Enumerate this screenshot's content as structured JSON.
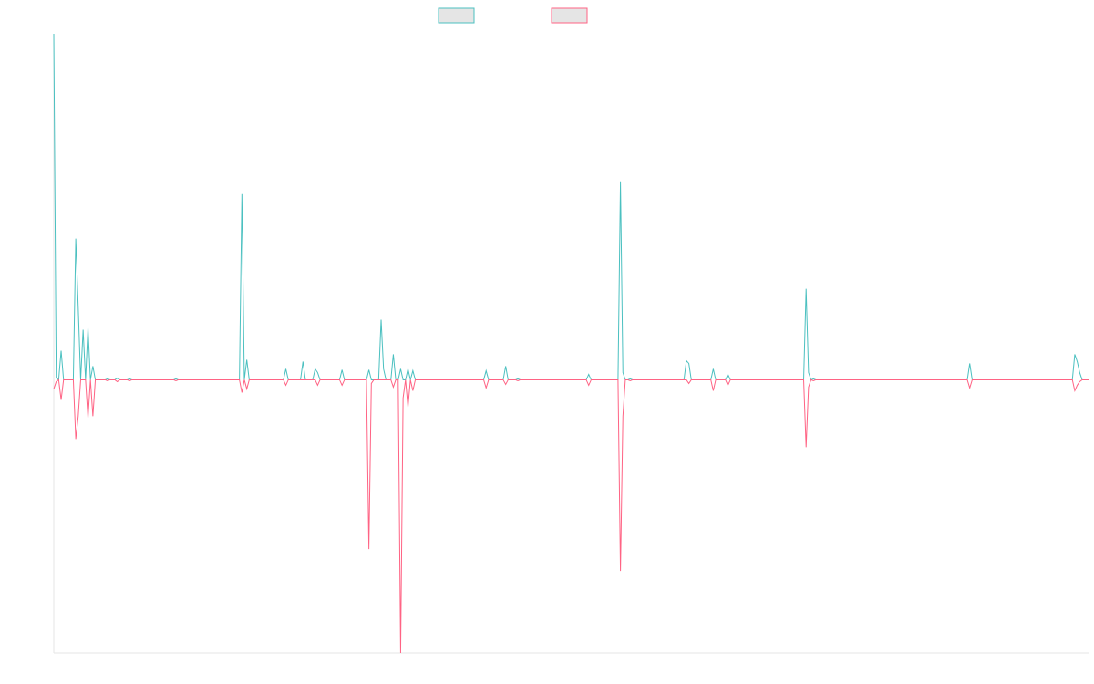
{
  "chart_data": {
    "type": "line",
    "title": "",
    "xlabel": "",
    "ylabel": "",
    "grid": false,
    "legend_position": "top-center",
    "colors": {
      "series_a": "#4bc0c0",
      "series_b": "#ff6384",
      "swatch_fill": "#e5e5e5",
      "axis": "#e6e6e6"
    },
    "ylim": [
      -300,
      380
    ],
    "x_count": 425,
    "series": [
      {
        "color_key": "series_a",
        "spikes": [
          [
            0,
            380
          ],
          [
            1,
            2
          ],
          [
            3,
            32
          ],
          [
            9,
            155
          ],
          [
            10,
            80
          ],
          [
            12,
            55
          ],
          [
            14,
            57
          ],
          [
            16,
            15
          ],
          [
            22,
            1
          ],
          [
            26,
            2
          ],
          [
            31,
            1
          ],
          [
            50,
            1
          ],
          [
            77,
            204
          ],
          [
            79,
            22
          ],
          [
            95,
            12
          ],
          [
            102,
            20
          ],
          [
            107,
            12
          ],
          [
            108,
            8
          ],
          [
            118,
            11
          ],
          [
            129,
            11
          ],
          [
            134,
            66
          ],
          [
            135,
            12
          ],
          [
            139,
            28
          ],
          [
            142,
            12
          ],
          [
            145,
            12
          ],
          [
            147,
            10
          ],
          [
            177,
            10
          ],
          [
            185,
            15
          ],
          [
            190,
            1
          ],
          [
            219,
            6
          ],
          [
            232,
            217
          ],
          [
            233,
            8
          ],
          [
            236,
            1
          ],
          [
            259,
            21
          ],
          [
            260,
            18
          ],
          [
            270,
            12
          ],
          [
            276,
            6
          ],
          [
            308,
            100
          ],
          [
            309,
            8
          ],
          [
            311,
            1
          ],
          [
            375,
            18
          ],
          [
            418,
            28
          ],
          [
            419,
            20
          ],
          [
            420,
            8
          ]
        ]
      },
      {
        "color_key": "series_b",
        "spikes": [
          [
            0,
            -10
          ],
          [
            1,
            -2
          ],
          [
            3,
            -22
          ],
          [
            9,
            -65
          ],
          [
            10,
            -40
          ],
          [
            14,
            -42
          ],
          [
            16,
            -40
          ],
          [
            22,
            -1
          ],
          [
            26,
            -2
          ],
          [
            31,
            -1
          ],
          [
            50,
            -1
          ],
          [
            77,
            -14
          ],
          [
            79,
            -10
          ],
          [
            95,
            -6
          ],
          [
            108,
            -6
          ],
          [
            118,
            -6
          ],
          [
            129,
            -186
          ],
          [
            130,
            -4
          ],
          [
            139,
            -8
          ],
          [
            142,
            -300
          ],
          [
            143,
            -20
          ],
          [
            145,
            -30
          ],
          [
            147,
            -12
          ],
          [
            177,
            -9
          ],
          [
            185,
            -5
          ],
          [
            190,
            -1
          ],
          [
            219,
            -6
          ],
          [
            232,
            -210
          ],
          [
            233,
            -40
          ],
          [
            236,
            -1
          ],
          [
            260,
            -4
          ],
          [
            270,
            -12
          ],
          [
            276,
            -6
          ],
          [
            308,
            -74
          ],
          [
            309,
            -8
          ],
          [
            311,
            -1
          ],
          [
            375,
            -9
          ],
          [
            418,
            -12
          ],
          [
            419,
            -6
          ],
          [
            420,
            -2
          ]
        ]
      }
    ]
  }
}
